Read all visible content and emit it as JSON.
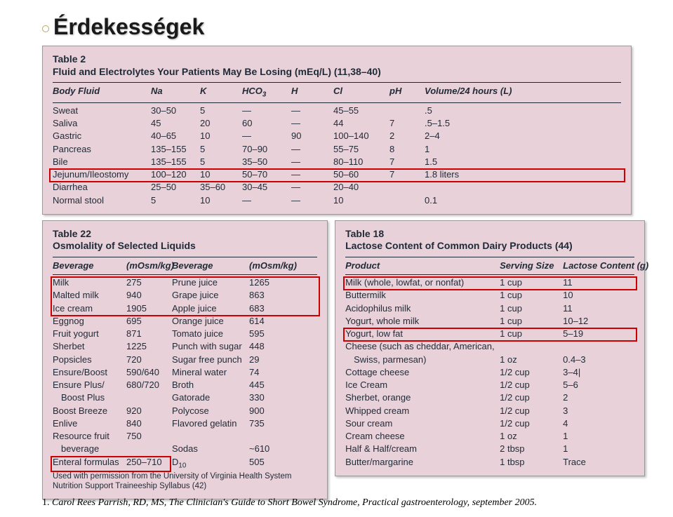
{
  "title": "Érdekességek",
  "table2": {
    "caption_no": "Table 2",
    "caption": "Fluid and Electrolytes Your Patients May Be Losing (mEq/L) (11,38–40)",
    "headers": [
      "Body Fluid",
      "Na",
      "K",
      "HCO3",
      "H",
      "Cl",
      "pH",
      "Volume/24 hours (L)"
    ],
    "rows": [
      [
        "Sweat",
        "30–50",
        "5",
        "—",
        "—",
        "45–55",
        "",
        ".5"
      ],
      [
        "Saliva",
        "45",
        "20",
        "60",
        "—",
        "44",
        "7",
        ".5–1.5"
      ],
      [
        "Gastric",
        "40–65",
        "10",
        "—",
        "90",
        "100–140",
        "2",
        "2–4"
      ],
      [
        "Pancreas",
        "135–155",
        "5",
        "70–90",
        "—",
        "55–75",
        "8",
        "1"
      ],
      [
        "Bile",
        "135–155",
        "5",
        "35–50",
        "—",
        "80–110",
        "7",
        "1.5"
      ],
      [
        "Jejunum/Ileostomy",
        "100–120",
        "10",
        "50–70",
        "—",
        "50–60",
        "7",
        "1.8 liters"
      ],
      [
        "Diarrhea",
        "25–50",
        "35–60",
        "30–45",
        "—",
        "20–40",
        "",
        ""
      ],
      [
        "Normal stool",
        "5",
        "10",
        "—",
        "—",
        "10",
        "",
        "0.1"
      ]
    ],
    "highlight_row": 5,
    "bg": "#e8d1d9",
    "text": "#1f2a36",
    "border": "#999999",
    "rule": "#1f2a36",
    "cap_fs": 14,
    "body_fs": 13,
    "hl_color": "#cc0000"
  },
  "table22": {
    "caption_no": "Table 22",
    "caption": "Osmolality of Selected Liquids",
    "headers": [
      "Beverage",
      "(mOsm/kg)",
      "Beverage",
      "(mOsm/kg)"
    ],
    "rows": [
      [
        "Milk",
        "275",
        "Prune juice",
        "1265"
      ],
      [
        "Malted milk",
        "940",
        "Grape juice",
        "863"
      ],
      [
        "Ice cream",
        "1905",
        "Apple juice",
        "683"
      ],
      [
        "Eggnog",
        "695",
        "Orange juice",
        "614"
      ],
      [
        "Fruit yogurt",
        "871",
        "Tomato juice",
        "595"
      ],
      [
        "Sherbet",
        "1225",
        "Punch with sugar",
        "448"
      ],
      [
        "Popsicles",
        "720",
        "Sugar free punch",
        "29"
      ],
      [
        "Ensure/Boost",
        "590/640",
        "Mineral water",
        "74"
      ],
      [
        "Ensure Plus/",
        "680/720",
        "Broth",
        "445"
      ],
      [
        "  Boost Plus",
        "",
        "Gatorade",
        "330"
      ],
      [
        "Boost Breeze",
        "920",
        "Polycose",
        "900"
      ],
      [
        "Enlive",
        "840",
        "Flavored gelatin",
        "735"
      ],
      [
        "Resource fruit",
        "750",
        "",
        ""
      ],
      [
        "  beverage",
        "",
        "Sodas",
        "~610"
      ],
      [
        "Enteral formulas",
        "250–710",
        "D10",
        "505"
      ]
    ],
    "note": "Used with permission from the University of Virginia Health System Nutrition Support Traineeship Syllabus (42)",
    "hl_top": [
      0,
      2
    ],
    "hl_bottom": 14,
    "bg": "#e8d1d9"
  },
  "table18": {
    "caption_no": "Table 18",
    "caption": "Lactose Content of Common Dairy Products (44)",
    "headers": [
      "Product",
      "Serving Size",
      "Lactose Content (g)"
    ],
    "rows": [
      [
        "Milk (whole, lowfat, or nonfat)",
        "1 cup",
        "11"
      ],
      [
        "Buttermilk",
        "1 cup",
        "10"
      ],
      [
        "Acidophilus milk",
        "1 cup",
        "11"
      ],
      [
        "Yogurt, whole milk",
        "1 cup",
        "10–12"
      ],
      [
        "Yogurt, low fat",
        "1 cup",
        "5–19"
      ],
      [
        "Cheese (such as cheddar, American,",
        "",
        ""
      ],
      [
        "  Swiss, parmesan)",
        "1 oz",
        "0.4–3"
      ],
      [
        "Cottage cheese",
        "1/2 cup",
        "3–4|"
      ],
      [
        "Ice Cream",
        "1/2 cup",
        "5–6"
      ],
      [
        "Sherbet, orange",
        "1/2 cup",
        "2"
      ],
      [
        "Whipped cream",
        "1/2 cup",
        "3"
      ],
      [
        "Sour cream",
        "1/2 cup",
        "4"
      ],
      [
        "Cream cheese",
        "1 oz",
        "1"
      ],
      [
        "Half & Half/cream",
        "2 tbsp",
        "1"
      ],
      [
        "Butter/margarine",
        "1 tbsp",
        "Trace"
      ]
    ],
    "hl_rows": [
      0,
      4
    ],
    "bg": "#e8d1d9"
  },
  "citation": {
    "num": "1.",
    "text": "Carol Rees Parrish, RD, MS, The Clinician's Guide to Short Bowel Syndrome, Practical gastroenterology, september 2005."
  }
}
